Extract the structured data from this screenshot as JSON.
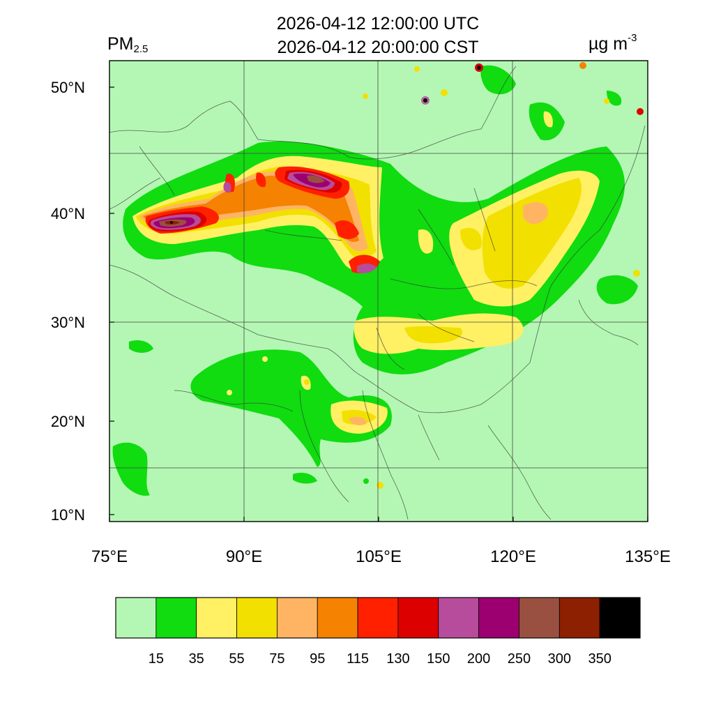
{
  "header": {
    "variable_main": "PM",
    "variable_sub": "2.5",
    "title_utc": "2026-04-12 12:00:00 UTC",
    "title_local": "2026-04-12 20:00:00 CST",
    "units_main": "µg m",
    "units_sup": "-3"
  },
  "map": {
    "background_color": "#b4f7b4",
    "lon_ticks": [
      {
        "value": 75,
        "label": "75°E"
      },
      {
        "value": 90,
        "label": "90°E"
      },
      {
        "value": 105,
        "label": "105°E"
      },
      {
        "value": 120,
        "label": "120°E"
      },
      {
        "value": 135,
        "label": "135°E"
      }
    ],
    "lat_ticks": [
      {
        "value": 10,
        "label": "10°N"
      },
      {
        "value": 20,
        "label": "20°N"
      },
      {
        "value": 30,
        "label": "30°N"
      },
      {
        "value": 40,
        "label": "40°N"
      },
      {
        "value": 50,
        "label": "50°N"
      }
    ]
  },
  "colorbar": {
    "colors": [
      "#b4f7b4",
      "#10dc10",
      "#fff064",
      "#f2e000",
      "#ffb464",
      "#f58200",
      "#ff2000",
      "#dc0000",
      "#b84c9c",
      "#9c0070",
      "#9a5040",
      "#8c2000",
      "#000000"
    ],
    "labels": [
      "15",
      "35",
      "55",
      "75",
      "95",
      "115",
      "130",
      "150",
      "200",
      "250",
      "300",
      "350"
    ]
  }
}
